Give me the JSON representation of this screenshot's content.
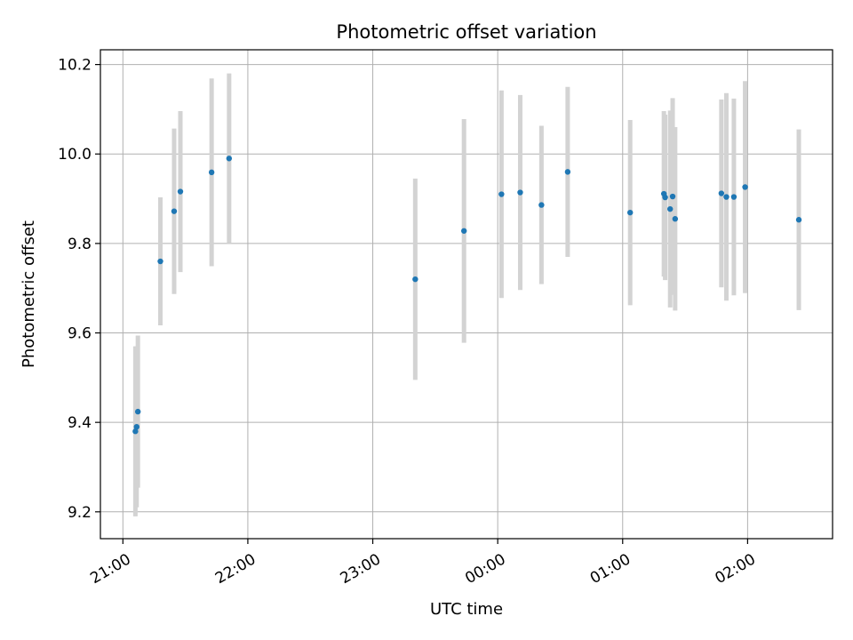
{
  "chart_data": {
    "type": "scatter",
    "title": "Photometric offset variation",
    "xlabel": "UTC time",
    "ylabel": "Photometric offset",
    "x_ticks": [
      "21:00",
      "22:00",
      "23:00",
      "00:00",
      "01:00",
      "02:00"
    ],
    "x_tick_hours": [
      21,
      22,
      23,
      24,
      25,
      26
    ],
    "y_ticks": [
      "9.2",
      "9.4",
      "9.6",
      "9.8",
      "10.0",
      "10.2"
    ],
    "y_tick_values": [
      9.2,
      9.4,
      9.6,
      9.8,
      10.0,
      10.2
    ],
    "xlim_hours": [
      20.82,
      26.68
    ],
    "ylim": [
      9.14,
      10.233
    ],
    "grid": true,
    "marker_color": "#1f77b4",
    "errorbar_color": "#d3d3d3",
    "points": [
      {
        "t_hours": 21.1,
        "y": 9.38,
        "err": 0.19
      },
      {
        "t_hours": 21.11,
        "y": 9.39,
        "err": 0.18
      },
      {
        "t_hours": 21.12,
        "y": 9.424,
        "err": 0.17
      },
      {
        "t_hours": 21.3,
        "y": 9.76,
        "err": 0.143
      },
      {
        "t_hours": 21.41,
        "y": 9.872,
        "err": 0.185
      },
      {
        "t_hours": 21.46,
        "y": 9.916,
        "err": 0.18
      },
      {
        "t_hours": 21.71,
        "y": 9.959,
        "err": 0.21
      },
      {
        "t_hours": 21.85,
        "y": 9.99,
        "err": 0.19
      },
      {
        "t_hours": 23.34,
        "y": 9.72,
        "err": 0.225
      },
      {
        "t_hours": 23.73,
        "y": 9.828,
        "err": 0.25
      },
      {
        "t_hours": 24.03,
        "y": 9.91,
        "err": 0.232
      },
      {
        "t_hours": 24.18,
        "y": 9.914,
        "err": 0.218
      },
      {
        "t_hours": 24.35,
        "y": 9.886,
        "err": 0.177
      },
      {
        "t_hours": 24.56,
        "y": 9.96,
        "err": 0.19
      },
      {
        "t_hours": 25.06,
        "y": 9.869,
        "err": 0.207
      },
      {
        "t_hours": 25.33,
        "y": 9.911,
        "err": 0.185
      },
      {
        "t_hours": 25.34,
        "y": 9.903,
        "err": 0.185
      },
      {
        "t_hours": 25.38,
        "y": 9.877,
        "err": 0.22
      },
      {
        "t_hours": 25.4,
        "y": 9.905,
        "err": 0.22
      },
      {
        "t_hours": 25.42,
        "y": 9.855,
        "err": 0.205
      },
      {
        "t_hours": 25.79,
        "y": 9.912,
        "err": 0.21
      },
      {
        "t_hours": 25.83,
        "y": 9.904,
        "err": 0.232
      },
      {
        "t_hours": 25.89,
        "y": 9.904,
        "err": 0.22
      },
      {
        "t_hours": 25.98,
        "y": 9.926,
        "err": 0.237
      },
      {
        "t_hours": 26.41,
        "y": 9.853,
        "err": 0.202
      }
    ]
  }
}
